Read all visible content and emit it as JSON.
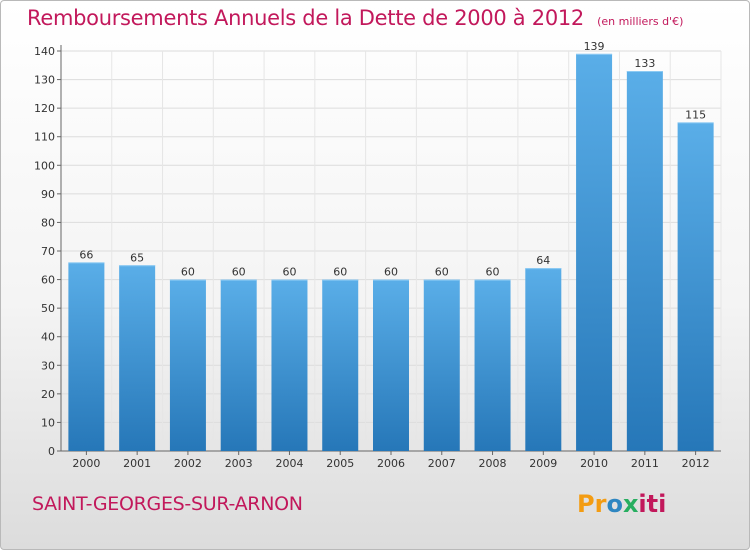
{
  "header": {
    "title": "Remboursements Annuels de la Dette de 2000 à 2012",
    "unit": "(en milliers d'€)"
  },
  "footer": {
    "place": "SAINT-GEORGES-SUR-ARNON",
    "logo_parts": [
      "Pr",
      "o",
      "x",
      "iti"
    ]
  },
  "colors": {
    "accent": "#c2185b",
    "bar_top": "#5aaee8",
    "bar_bottom": "#2677b8"
  },
  "chart_data": {
    "type": "bar",
    "title": "Remboursements Annuels de la Dette de 2000 à 2012",
    "subtitle": "(en milliers d'€)",
    "categories": [
      "2000",
      "2001",
      "2002",
      "2003",
      "2004",
      "2005",
      "2006",
      "2007",
      "2008",
      "2009",
      "2010",
      "2011",
      "2012"
    ],
    "values": [
      66,
      65,
      60,
      60,
      60,
      60,
      60,
      60,
      60,
      64,
      139,
      133,
      115
    ],
    "ylim": [
      0,
      140
    ],
    "yticks": [
      0,
      10,
      20,
      30,
      40,
      50,
      60,
      70,
      80,
      90,
      100,
      110,
      120,
      130,
      140
    ],
    "grid": true
  }
}
